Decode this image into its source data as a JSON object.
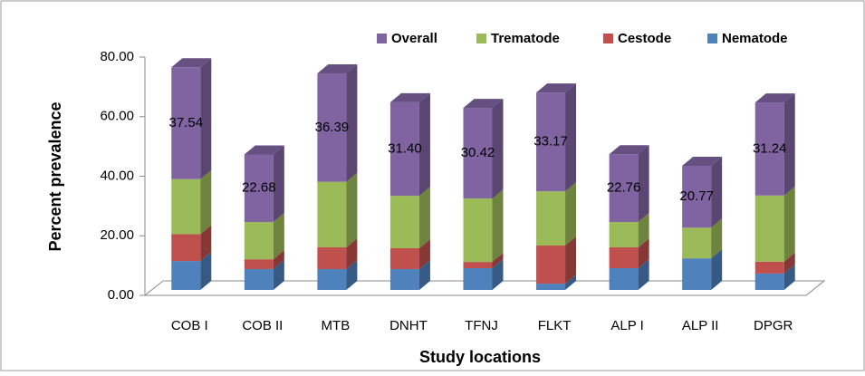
{
  "chart_data": {
    "type": "bar",
    "stacked": true,
    "three_d": true,
    "x_label": "Study locations",
    "y_label": "Percent prevalence",
    "categories": [
      "COB I",
      "COB II",
      "MTB",
      "DNHT",
      "TFNJ",
      "FLKT",
      "ALP I",
      "ALP II",
      "DPGR"
    ],
    "series": [
      {
        "name": "Overall",
        "color": "#8064a2",
        "values": [
          37.54,
          22.68,
          36.39,
          31.4,
          30.42,
          33.17,
          22.76,
          20.77,
          31.24
        ],
        "value_labels": [
          "37.54",
          "22.68",
          "36.39",
          "31.40",
          "30.42",
          "33.17",
          "22.76",
          "20.77",
          "31.24"
        ]
      },
      {
        "name": "Trematode",
        "color": "#9bbb59",
        "values": [
          18.5,
          12.5,
          22,
          17.6,
          21.3,
          18.2,
          8.5,
          10.3,
          22.2
        ]
      },
      {
        "name": "Cestode",
        "color": "#c0504d",
        "values": [
          9,
          3.3,
          7.3,
          7,
          2.1,
          12.8,
          7,
          0,
          4
        ]
      },
      {
        "name": "Nematode",
        "color": "#4f81bd",
        "values": [
          9.7,
          7,
          7,
          7,
          7.3,
          2.1,
          7.3,
          10.6,
          5.5
        ]
      }
    ],
    "ylim": [
      0,
      80
    ],
    "yticks": [
      {
        "value": 0,
        "label": "0.00"
      },
      {
        "value": 20,
        "label": "20.00"
      },
      {
        "value": 40,
        "label": "40.00"
      },
      {
        "value": 60,
        "label": "60.00"
      },
      {
        "value": 80,
        "label": "80.00"
      }
    ],
    "legend": "top-right"
  }
}
